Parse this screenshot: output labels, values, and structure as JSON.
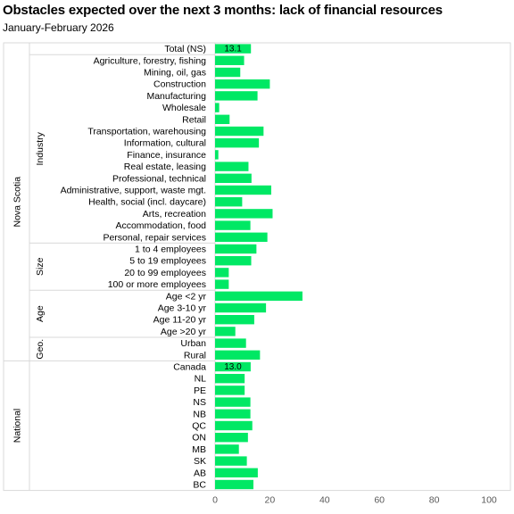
{
  "chart_data": {
    "type": "bar",
    "orientation": "horizontal",
    "title": "Obstacles expected over the next 3 months:  lack of financial resources",
    "subtitle": "January-February  2026",
    "xlim": [
      0,
      100
    ],
    "xticks": [
      "0",
      "20",
      "40",
      "60",
      "80",
      "100"
    ],
    "grid": false,
    "bar_color": "#00e864",
    "categories": [
      "Total (NS)",
      "Agriculture, forestry, fishing",
      "Mining, oil, gas",
      "Construction",
      "Manufacturing",
      "Wholesale",
      "Retail",
      "Transportation, warehousing",
      "Information, cultural",
      "Finance, insurance",
      "Real estate, leasing",
      "Professional, technical",
      "Administrative, support, waste mgt.",
      "Health, social (incl. daycare)",
      "Arts, recreation",
      "Accommodation, food",
      "Personal, repair services",
      "1 to 4 employees",
      "5 to 19 employees",
      "20 to 99 employees",
      "100 or more employees",
      "Age <2 yr",
      "Age 3-10 yr",
      "Age 11-20 yr",
      "Age >20 yr",
      "Urban",
      "Rural",
      "Canada",
      "NL",
      "PE",
      "NS",
      "NB",
      "QC",
      "ON",
      "MB",
      "SK",
      "AB",
      "BC"
    ],
    "values": [
      13.1,
      10.6,
      9.2,
      20.0,
      15.5,
      1.5,
      5.3,
      17.7,
      16.0,
      1.2,
      12.2,
      13.3,
      20.5,
      9.9,
      21.0,
      12.9,
      19.1,
      15.1,
      13.2,
      5.0,
      5.0,
      31.9,
      18.6,
      14.3,
      7.4,
      11.3,
      16.4,
      13.0,
      10.8,
      10.8,
      12.9,
      12.9,
      13.6,
      12.0,
      8.7,
      11.6,
      15.6,
      14.0
    ],
    "data_labels": [
      {
        "index": 0,
        "text": "13.1"
      },
      {
        "index": 27,
        "text": "13.0"
      }
    ],
    "groups": [
      {
        "label": "Nova Scotia",
        "level": "outer",
        "start": 0,
        "end": 26
      },
      {
        "label": "Industry",
        "level": "inner",
        "start": 1,
        "end": 16
      },
      {
        "label": "Size",
        "level": "inner",
        "start": 17,
        "end": 20
      },
      {
        "label": "Age",
        "level": "inner",
        "start": 21,
        "end": 24
      },
      {
        "label": "Geo.",
        "level": "inner",
        "start": 25,
        "end": 26
      },
      {
        "label": "National",
        "level": "outer",
        "start": 27,
        "end": 37
      }
    ]
  }
}
